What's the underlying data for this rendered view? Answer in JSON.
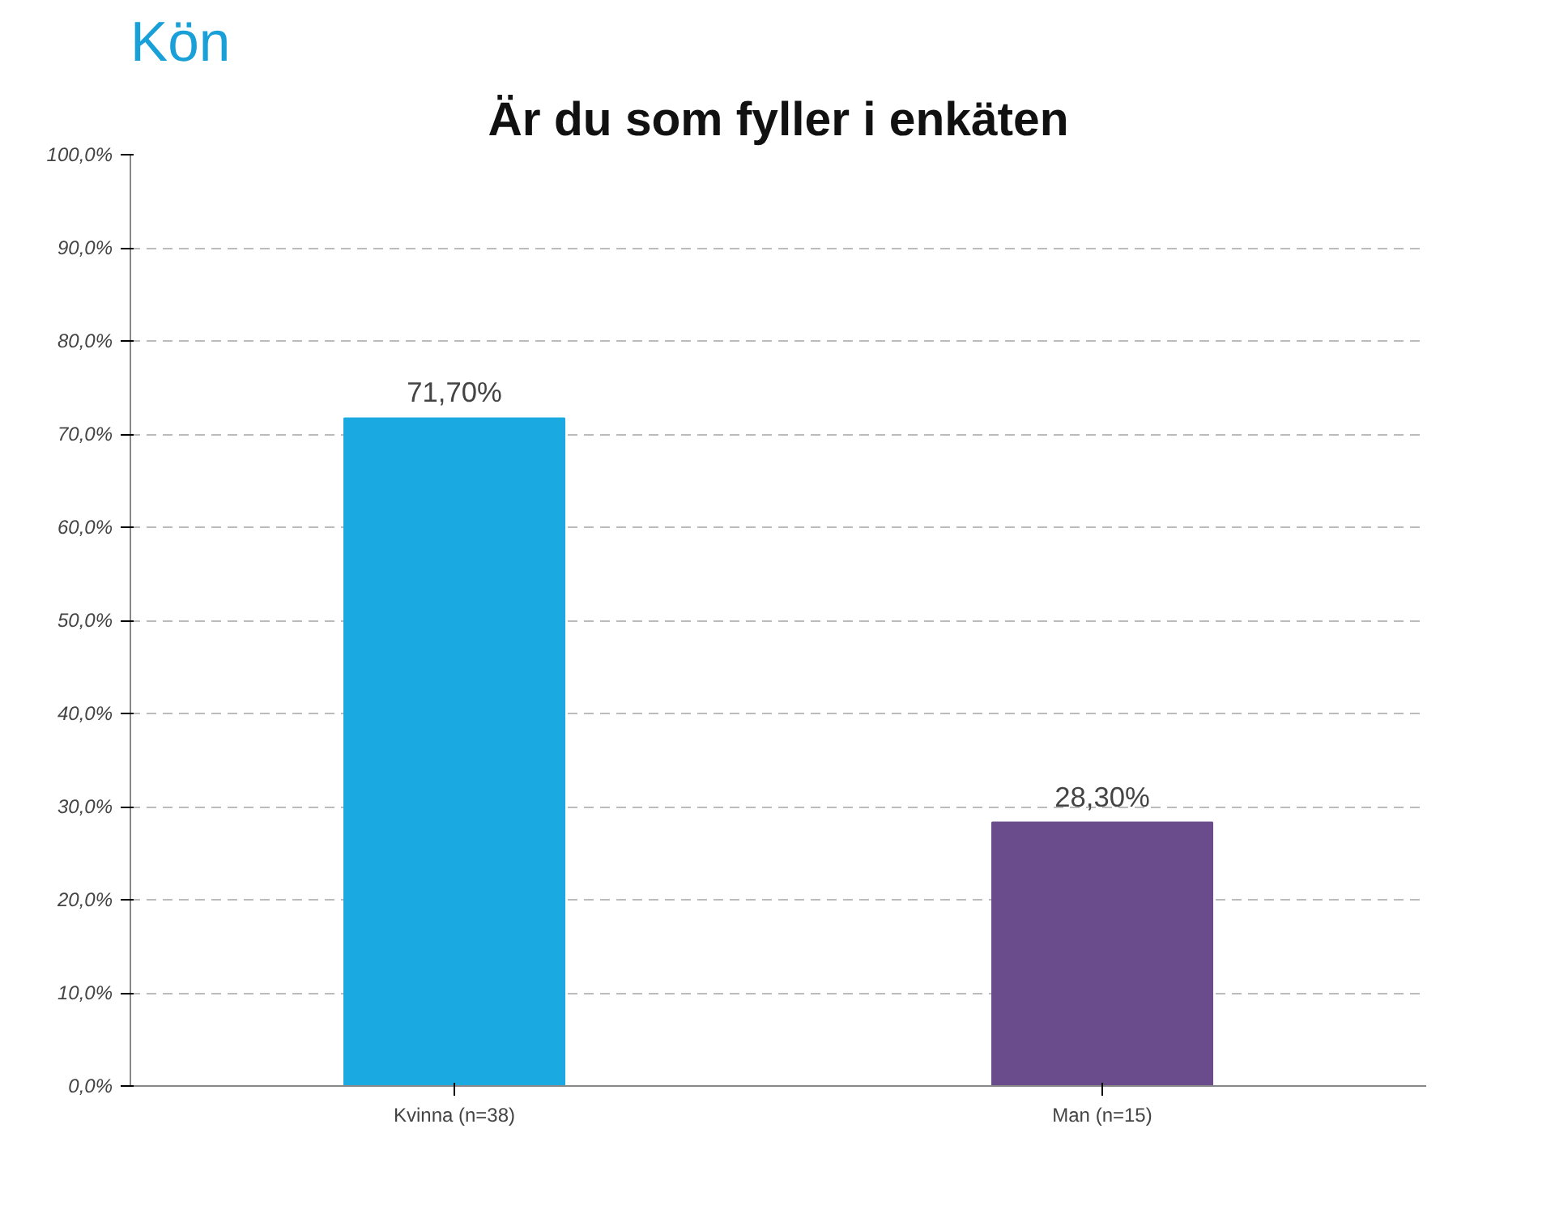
{
  "chart_data": {
    "type": "bar",
    "title": "Kön",
    "subtitle": "Är du som fyller i enkäten",
    "categories": [
      "Kvinna (n=38)",
      "Man (n=15)"
    ],
    "values": [
      71.7,
      28.3
    ],
    "colors": [
      "#1aa9e1",
      "#6a4c8c"
    ],
    "value_labels": [
      "71,70%",
      "28,30%"
    ],
    "ylim": [
      0,
      100
    ],
    "yticks": [
      {
        "value": 0,
        "label": "0,0%"
      },
      {
        "value": 10,
        "label": "10,0%"
      },
      {
        "value": 20,
        "label": "20,0%"
      },
      {
        "value": 30,
        "label": "30,0%"
      },
      {
        "value": 40,
        "label": "40,0%"
      },
      {
        "value": 50,
        "label": "50,0%"
      },
      {
        "value": 60,
        "label": "60,0%"
      },
      {
        "value": 70,
        "label": "70,0%"
      },
      {
        "value": 80,
        "label": "80,0%"
      },
      {
        "value": 90,
        "label": "90,0%"
      },
      {
        "value": 100,
        "label": "100,0%"
      }
    ],
    "grid": "y"
  }
}
